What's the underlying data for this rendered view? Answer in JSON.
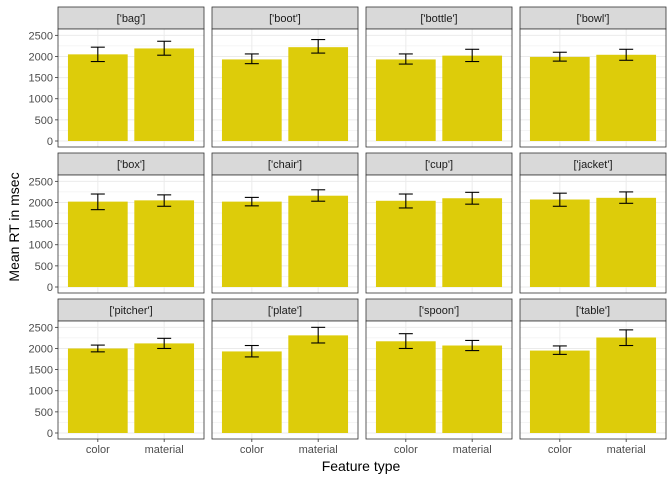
{
  "chart_data": {
    "type": "bar",
    "xlabel": "Feature type",
    "ylabel": "Mean RT in msec",
    "categories": [
      "color",
      "material"
    ],
    "yticks": [
      0,
      500,
      1000,
      1500,
      2000,
      2500
    ],
    "ylim": [
      0,
      2650
    ],
    "grid": true,
    "colors": {
      "bar": "#DDCC0A",
      "strip": "#D9D9D9",
      "grid": "#EBEBEB",
      "border": "#333333",
      "errorbar": "#000000"
    },
    "panels": [
      {
        "label": "['bag']",
        "values": [
          2050,
          2190
        ],
        "errors": [
          [
            1880,
            2220
          ],
          [
            2030,
            2360
          ]
        ]
      },
      {
        "label": "['boot']",
        "values": [
          1930,
          2220
        ],
        "errors": [
          [
            1830,
            2060
          ],
          [
            2080,
            2400
          ]
        ]
      },
      {
        "label": "['bottle']",
        "values": [
          1930,
          2020
        ],
        "errors": [
          [
            1820,
            2060
          ],
          [
            1880,
            2170
          ]
        ]
      },
      {
        "label": "['bowl']",
        "values": [
          1990,
          2040
        ],
        "errors": [
          [
            1890,
            2100
          ],
          [
            1910,
            2170
          ]
        ]
      },
      {
        "label": "['box']",
        "values": [
          2020,
          2050
        ],
        "errors": [
          [
            1830,
            2200
          ],
          [
            1910,
            2180
          ]
        ]
      },
      {
        "label": "['chair']",
        "values": [
          2020,
          2160
        ],
        "errors": [
          [
            1920,
            2120
          ],
          [
            2030,
            2300
          ]
        ]
      },
      {
        "label": "['cup']",
        "values": [
          2040,
          2100
        ],
        "errors": [
          [
            1870,
            2200
          ],
          [
            1960,
            2240
          ]
        ]
      },
      {
        "label": "['jacket']",
        "values": [
          2070,
          2110
        ],
        "errors": [
          [
            1910,
            2220
          ],
          [
            1980,
            2250
          ]
        ]
      },
      {
        "label": "['pitcher']",
        "values": [
          2000,
          2120
        ],
        "errors": [
          [
            1920,
            2080
          ],
          [
            2000,
            2240
          ]
        ]
      },
      {
        "label": "['plate']",
        "values": [
          1930,
          2310
        ],
        "errors": [
          [
            1800,
            2070
          ],
          [
            2130,
            2500
          ]
        ]
      },
      {
        "label": "['spoon']",
        "values": [
          2170,
          2070
        ],
        "errors": [
          [
            2000,
            2350
          ],
          [
            1950,
            2190
          ]
        ]
      },
      {
        "label": "['table']",
        "values": [
          1950,
          2260
        ],
        "errors": [
          [
            1860,
            2060
          ],
          [
            2070,
            2440
          ]
        ]
      }
    ]
  }
}
